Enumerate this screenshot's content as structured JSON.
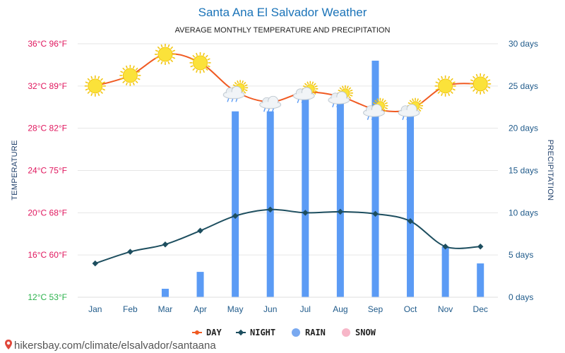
{
  "title": "Santa Ana El Salvador Weather",
  "subtitle": "AVERAGE MONTHLY TEMPERATURE AND PRECIPITATION",
  "footer": "hikersbay.com/climate/elsalvador/santaana",
  "chart_data": {
    "type": "line+bar",
    "categories": [
      "Jan",
      "Feb",
      "Mar",
      "Apr",
      "May",
      "Jun",
      "Jul",
      "Aug",
      "Sep",
      "Oct",
      "Nov",
      "Dec"
    ],
    "y_left": {
      "label": "TEMPERATURE",
      "range_c": [
        12,
        36
      ],
      "ticks": [
        "12°C 53°F",
        "16°C 60°F",
        "20°C 68°F",
        "24°C 75°F",
        "28°C 82°F",
        "32°C 89°F",
        "36°C 96°F"
      ]
    },
    "y_right": {
      "label": "PRECIPITATION",
      "range_days": [
        0,
        30
      ],
      "ticks": [
        "0 days",
        "5 days",
        "10 days",
        "15 days",
        "20 days",
        "25 days",
        "30 days"
      ]
    },
    "series": [
      {
        "name": "DAY",
        "kind": "line",
        "color": "#f05a22",
        "values": [
          32.0,
          33.0,
          35.0,
          34.2,
          31.5,
          30.5,
          31.4,
          31.0,
          29.8,
          29.8,
          32.0,
          32.2
        ]
      },
      {
        "name": "NIGHT",
        "kind": "line",
        "color": "#1d4e5f",
        "values": [
          15.2,
          16.3,
          17.0,
          18.3,
          19.7,
          20.3,
          20.0,
          20.1,
          19.9,
          19.2,
          16.8,
          16.8
        ]
      },
      {
        "name": "RAIN",
        "kind": "bar",
        "color": "#5b9bf5",
        "values": [
          0,
          0,
          1,
          3,
          22,
          22,
          24,
          24,
          28,
          22,
          6,
          4
        ]
      },
      {
        "name": "SNOW",
        "kind": "bar",
        "color": "#f7b6c8",
        "values": [
          0,
          0,
          0,
          0,
          0,
          0,
          0,
          0,
          0,
          0,
          0,
          0
        ]
      }
    ],
    "weather_icons": [
      "sun",
      "sun",
      "sun",
      "sun",
      "sun-cloud-rain",
      "cloud-rain",
      "sun-cloud-rain",
      "sun-cloud-rain",
      "sun-cloud-rain",
      "sun-cloud-rain",
      "sun",
      "sun"
    ],
    "legend": [
      "DAY",
      "NIGHT",
      "RAIN",
      "SNOW"
    ],
    "legend_position": "bottom",
    "grid": true
  }
}
